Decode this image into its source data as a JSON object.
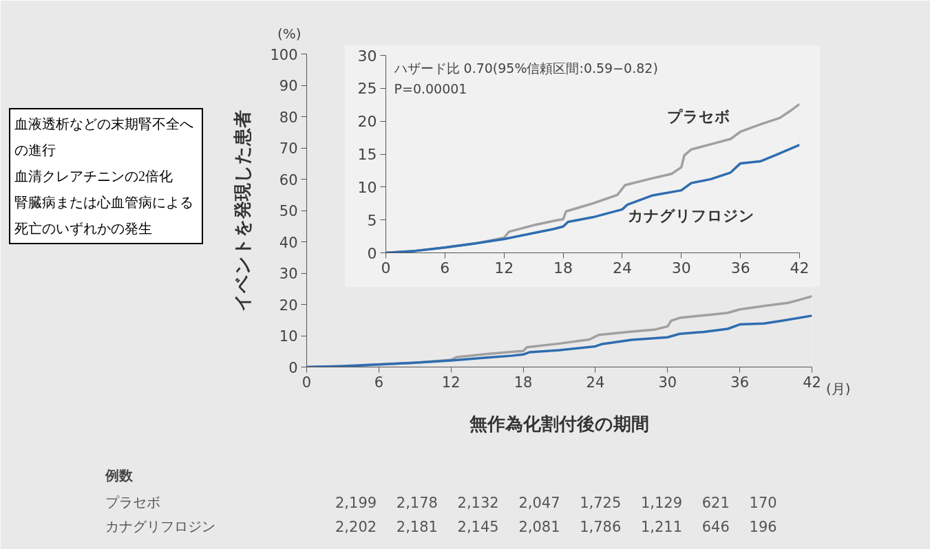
{
  "chart_data": [
    {
      "type": "line",
      "ylabel": "イベントを発現した患者",
      "xlabel": "無作為化割付後の期間",
      "xlim": [
        0,
        42
      ],
      "ylim": [
        0,
        100
      ],
      "xticks": [
        0,
        6,
        12,
        18,
        24,
        30,
        36,
        42
      ],
      "yticks": [
        0,
        10,
        20,
        30,
        40,
        50,
        60,
        70,
        80,
        90,
        100
      ],
      "grid": false,
      "annotations": [
        "(%)",
        "(月)",
        "血液透析などの末期腎不全への進行",
        "血清クレアチニンの2倍化",
        "腎臓病または心血管病による死亡のいずれかの発生",
        "例数",
        "プラセボ",
        "カナグリフロジン",
        "2,199 2,178 2,132 2,047 1,725 1,129 621 170",
        "2,202 2,181 2,145 2,081 1,786 1,211 646 196"
      ],
      "series": [
        {
          "color": "#a0a0a0",
          "x": [
            0,
            3,
            6,
            9,
            11,
            12,
            12.5,
            15,
            17.5,
            18,
            18.3,
            21,
            23.5,
            24.3,
            27,
            29,
            30,
            30.3,
            31,
            33,
            35,
            36,
            38,
            40,
            41,
            42
          ],
          "values": [
            0,
            0.3,
            0.8,
            1.4,
            2.0,
            2.3,
            3.2,
            4.2,
            5.0,
            5.1,
            6.3,
            7.5,
            8.8,
            10.3,
            11.3,
            12.0,
            13.0,
            14.8,
            15.7,
            16.5,
            17.3,
            18.4,
            19.5,
            20.5,
            21.5,
            22.6
          ]
        },
        {
          "color": "#2e6db0",
          "x": [
            0,
            3,
            6,
            9,
            12,
            15,
            17,
            18,
            18.5,
            21,
            24,
            24.5,
            27,
            30,
            31,
            33,
            35,
            36,
            38,
            39.5,
            42
          ],
          "values": [
            0,
            0.3,
            0.8,
            1.4,
            2.1,
            3.0,
            3.6,
            4.0,
            4.7,
            5.4,
            6.6,
            7.3,
            8.7,
            9.5,
            10.6,
            11.2,
            12.2,
            13.6,
            13.9,
            14.8,
            16.4
          ]
        }
      ]
    },
    {
      "type": "line",
      "xlim": [
        0,
        42
      ],
      "ylim": [
        0,
        30
      ],
      "xticks": [
        0,
        6,
        12,
        18,
        24,
        30,
        36,
        42
      ],
      "yticks": [
        0,
        5,
        10,
        15,
        20,
        25,
        30
      ],
      "grid": false,
      "annotations": [
        "ハザード比 0.70(95%信頼区間:0.59−0.82)",
        "P=0.00001"
      ],
      "series": [
        {
          "name": "プラセボ",
          "color": "#a0a0a0",
          "x": [
            0,
            3,
            6,
            9,
            11,
            12,
            12.5,
            15,
            17.5,
            18,
            18.3,
            21,
            23.5,
            24.3,
            27,
            29,
            30,
            30.3,
            31,
            33,
            35,
            36,
            38,
            40,
            41,
            42
          ],
          "values": [
            0,
            0.3,
            0.8,
            1.4,
            2.0,
            2.3,
            3.2,
            4.2,
            5.0,
            5.1,
            6.3,
            7.5,
            8.8,
            10.3,
            11.3,
            12.0,
            13.0,
            14.8,
            15.7,
            16.5,
            17.3,
            18.4,
            19.5,
            20.5,
            21.5,
            22.6
          ]
        },
        {
          "name": "カナグリフロジン",
          "color": "#2e6db0",
          "x": [
            0,
            3,
            6,
            9,
            12,
            15,
            17,
            18,
            18.5,
            21,
            24,
            24.5,
            27,
            30,
            31,
            33,
            35,
            36,
            38,
            39.5,
            42
          ],
          "values": [
            0,
            0.3,
            0.8,
            1.4,
            2.1,
            3.0,
            3.6,
            4.0,
            4.7,
            5.4,
            6.6,
            7.3,
            8.7,
            9.5,
            10.6,
            11.2,
            12.2,
            13.6,
            13.9,
            14.8,
            16.4
          ]
        }
      ]
    }
  ]
}
